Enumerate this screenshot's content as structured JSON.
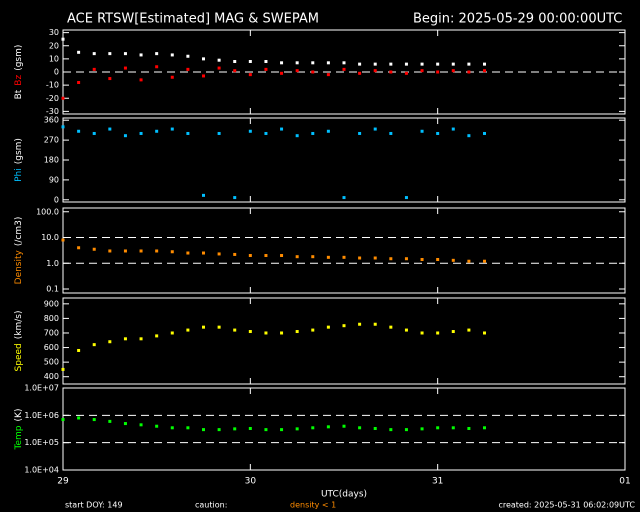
{
  "header": {
    "title": "ACE RTSW[Estimated] MAG & SWEPAM",
    "begin": "Begin: 2025-05-29 00:00:00UTC"
  },
  "footer": {
    "start": "start DOY: 149",
    "caution": "caution:",
    "caution_note": "density < 1",
    "created": "created: 2025-05-31 06:02:09UTC"
  },
  "chart_data": [
    {
      "type": "scatter",
      "ylabel": [
        {
          "text": "Bt",
          "color": "#ffffff"
        },
        {
          "text": "Bz",
          "color": "#ff0000"
        },
        {
          "text": "(gsm)",
          "color": "#ffffff"
        }
      ],
      "ylim": [
        -32,
        32
      ],
      "yticks": [
        -30,
        -20,
        -10,
        0,
        10,
        20,
        30
      ],
      "ref_lines": [
        0
      ],
      "x": [
        0,
        2,
        4,
        6,
        8,
        10,
        12,
        14,
        16,
        18,
        20,
        22,
        24,
        26,
        28,
        30,
        32,
        34,
        36,
        38,
        40,
        42,
        44,
        46,
        48,
        50,
        52,
        54
      ],
      "series": [
        {
          "name": "Bt",
          "color": "#ffffff",
          "values": [
            25,
            15,
            14,
            14,
            14,
            13,
            14,
            13,
            12,
            10,
            9,
            8,
            8,
            8,
            7,
            7,
            7,
            7,
            7,
            6,
            6,
            6,
            6,
            6,
            6,
            6,
            6,
            6
          ]
        },
        {
          "name": "Bz",
          "color": "#ff0000",
          "values": [
            -20,
            -8,
            2,
            -5,
            3,
            -6,
            4,
            -4,
            2,
            -3,
            3,
            1,
            -2,
            2,
            -1,
            1,
            0,
            -2,
            2,
            -1,
            1,
            0,
            -1,
            1,
            0,
            1,
            0,
            1
          ]
        }
      ]
    },
    {
      "type": "scatter",
      "ylabel": [
        {
          "text": "Phi",
          "color": "#00bfff"
        },
        {
          "text": "(gsm)",
          "color": "#ffffff"
        }
      ],
      "ylim": [
        -10,
        370
      ],
      "yticks": [
        0,
        90,
        180,
        270,
        360
      ],
      "ref_lines": [],
      "x": [
        0,
        2,
        4,
        6,
        8,
        10,
        12,
        14,
        16,
        18,
        20,
        22,
        24,
        26,
        28,
        30,
        32,
        34,
        36,
        38,
        40,
        42,
        44,
        46,
        48,
        50,
        52,
        54
      ],
      "series": [
        {
          "name": "Phi",
          "color": "#00bfff",
          "values": [
            330,
            310,
            300,
            320,
            290,
            300,
            310,
            320,
            300,
            20,
            300,
            10,
            310,
            300,
            320,
            290,
            300,
            310,
            10,
            300,
            320,
            300,
            10,
            310,
            300,
            320,
            290,
            300
          ]
        }
      ]
    },
    {
      "type": "scatter",
      "log": true,
      "ylabel": [
        {
          "text": "Density",
          "color": "#ff8c00"
        },
        {
          "text": "(/cm3)",
          "color": "#ffffff"
        }
      ],
      "ylim": [
        0.07,
        140
      ],
      "yticks": [
        0.1,
        {
          "value": 1,
          "label": "1.0"
        },
        {
          "value": 10,
          "label": "10.0"
        },
        {
          "value": 100,
          "label": "100.0"
        }
      ],
      "ref_lines": [
        1,
        10
      ],
      "x": [
        0,
        2,
        4,
        6,
        8,
        10,
        12,
        14,
        16,
        18,
        20,
        22,
        24,
        26,
        28,
        30,
        32,
        34,
        36,
        38,
        40,
        42,
        44,
        46,
        48,
        50,
        52,
        54
      ],
      "series": [
        {
          "name": "Density",
          "color": "#ff8c00",
          "values": [
            8,
            4,
            3.5,
            3,
            3,
            3,
            3,
            2.8,
            2.5,
            2.5,
            2.3,
            2.2,
            2,
            2,
            2,
            1.8,
            1.8,
            1.7,
            1.7,
            1.6,
            1.6,
            1.5,
            1.5,
            1.4,
            1.4,
            1.3,
            1.2,
            1.2
          ]
        }
      ]
    },
    {
      "type": "scatter",
      "ylabel": [
        {
          "text": "Speed",
          "color": "#ffff00"
        },
        {
          "text": "(km/s)",
          "color": "#ffffff"
        }
      ],
      "ylim": [
        350,
        940
      ],
      "yticks": [
        400,
        500,
        600,
        700,
        800,
        900
      ],
      "ref_lines": [],
      "x": [
        0,
        2,
        4,
        6,
        8,
        10,
        12,
        14,
        16,
        18,
        20,
        22,
        24,
        26,
        28,
        30,
        32,
        34,
        36,
        38,
        40,
        42,
        44,
        46,
        48,
        50,
        52,
        54
      ],
      "series": [
        {
          "name": "Speed",
          "color": "#ffff00",
          "values": [
            450,
            580,
            620,
            640,
            660,
            660,
            680,
            700,
            720,
            740,
            740,
            720,
            710,
            700,
            700,
            710,
            720,
            740,
            750,
            760,
            760,
            740,
            720,
            700,
            700,
            710,
            720,
            700
          ]
        }
      ]
    },
    {
      "type": "scatter",
      "log": true,
      "ylabel": [
        {
          "text": "Temp",
          "color": "#00ff00"
        },
        {
          "text": "(K)",
          "color": "#ffffff"
        }
      ],
      "ylim": [
        10000,
        10000000
      ],
      "yticks": [
        {
          "value": 10000,
          "label": "1.0E+04"
        },
        {
          "value": 100000,
          "label": "1.0E+05"
        },
        {
          "value": 1000000,
          "label": "1.0E+06"
        },
        {
          "value": 10000000,
          "label": "1.0E+07"
        }
      ],
      "ref_lines": [
        100000,
        1000000
      ],
      "xlabel": "UTC(days)",
      "xlim": [
        0,
        72
      ],
      "xticks": [
        {
          "value": 0,
          "label": "29"
        },
        {
          "value": 24,
          "label": "30"
        },
        {
          "value": 48,
          "label": "31"
        },
        {
          "value": 72,
          "label": "01"
        }
      ],
      "x": [
        0,
        2,
        4,
        6,
        8,
        10,
        12,
        14,
        16,
        18,
        20,
        22,
        24,
        26,
        28,
        30,
        32,
        34,
        36,
        38,
        40,
        42,
        44,
        46,
        48,
        50,
        52,
        54
      ],
      "series": [
        {
          "name": "Temp",
          "color": "#00ff00",
          "values": [
            700000,
            800000,
            700000,
            600000,
            500000,
            450000,
            400000,
            350000,
            350000,
            300000,
            300000,
            320000,
            330000,
            300000,
            300000,
            320000,
            350000,
            380000,
            400000,
            350000,
            330000,
            300000,
            300000,
            320000,
            350000,
            350000,
            330000,
            350000
          ]
        }
      ]
    }
  ]
}
